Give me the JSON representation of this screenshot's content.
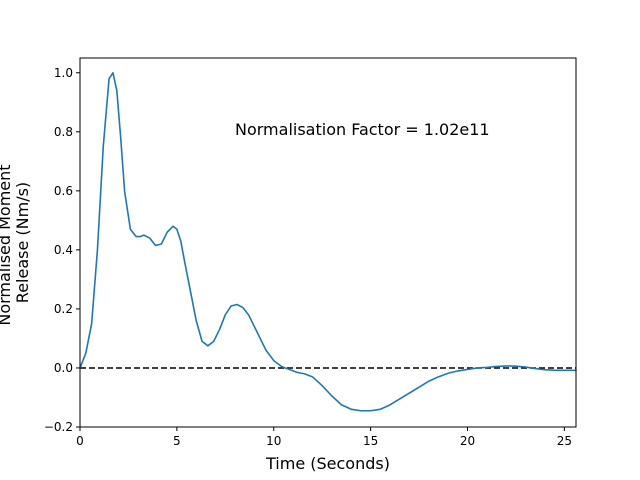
{
  "chart_data": {
    "type": "line",
    "title": "",
    "xlabel": "Time (Seconds)",
    "ylabel_lines": [
      "Normalised Moment",
      "Release (Nm/s)"
    ],
    "xlim": [
      0,
      25.6
    ],
    "ylim": [
      -0.2,
      1.05
    ],
    "x_ticks": [
      0,
      5,
      10,
      15,
      20,
      25
    ],
    "x_tick_labels": [
      "0",
      "5",
      "10",
      "15",
      "20",
      "25"
    ],
    "y_ticks": [
      -0.2,
      0.0,
      0.2,
      0.4,
      0.6,
      0.8,
      1.0
    ],
    "y_tick_labels": [
      "−0.2",
      "0.0",
      "0.2",
      "0.4",
      "0.6",
      "0.8",
      "1.0"
    ],
    "grid": false,
    "annotation": {
      "text": "Normalisation Factor = 1.02e11",
      "x": 8.0,
      "y": 0.81
    },
    "reference_line": {
      "y": 0.0,
      "style": "dashed",
      "color": "#000000"
    },
    "series": [
      {
        "color": "#1f77b4",
        "x": [
          0,
          0.3,
          0.6,
          0.9,
          1.2,
          1.5,
          1.7,
          1.9,
          2.1,
          2.3,
          2.6,
          2.9,
          3.1,
          3.3,
          3.6,
          3.9,
          4.2,
          4.5,
          4.8,
          5.0,
          5.2,
          5.4,
          5.7,
          6.0,
          6.3,
          6.6,
          6.9,
          7.2,
          7.5,
          7.8,
          8.1,
          8.4,
          8.7,
          9.0,
          9.3,
          9.6,
          10.0,
          10.4,
          10.8,
          11.2,
          11.6,
          12.0,
          12.5,
          13.0,
          13.5,
          14.0,
          14.5,
          15.0,
          15.5,
          16.0,
          16.5,
          17.0,
          17.5,
          18.0,
          18.5,
          19.0,
          19.5,
          20.0,
          20.5,
          21.0,
          21.5,
          22.0,
          22.5,
          23.0,
          23.5,
          24.0,
          24.5,
          25.0,
          25.6
        ],
        "y": [
          0.0,
          0.05,
          0.15,
          0.4,
          0.75,
          0.98,
          1.0,
          0.94,
          0.78,
          0.6,
          0.47,
          0.445,
          0.445,
          0.45,
          0.44,
          0.415,
          0.42,
          0.46,
          0.48,
          0.47,
          0.43,
          0.36,
          0.26,
          0.16,
          0.09,
          0.075,
          0.09,
          0.13,
          0.18,
          0.21,
          0.215,
          0.205,
          0.18,
          0.14,
          0.1,
          0.06,
          0.025,
          0.005,
          -0.005,
          -0.015,
          -0.02,
          -0.03,
          -0.06,
          -0.095,
          -0.125,
          -0.14,
          -0.145,
          -0.145,
          -0.14,
          -0.125,
          -0.105,
          -0.085,
          -0.065,
          -0.045,
          -0.03,
          -0.018,
          -0.01,
          -0.005,
          0.0,
          0.002,
          0.005,
          0.007,
          0.006,
          0.003,
          -0.002,
          -0.006,
          -0.008,
          -0.008,
          -0.008
        ]
      }
    ]
  }
}
